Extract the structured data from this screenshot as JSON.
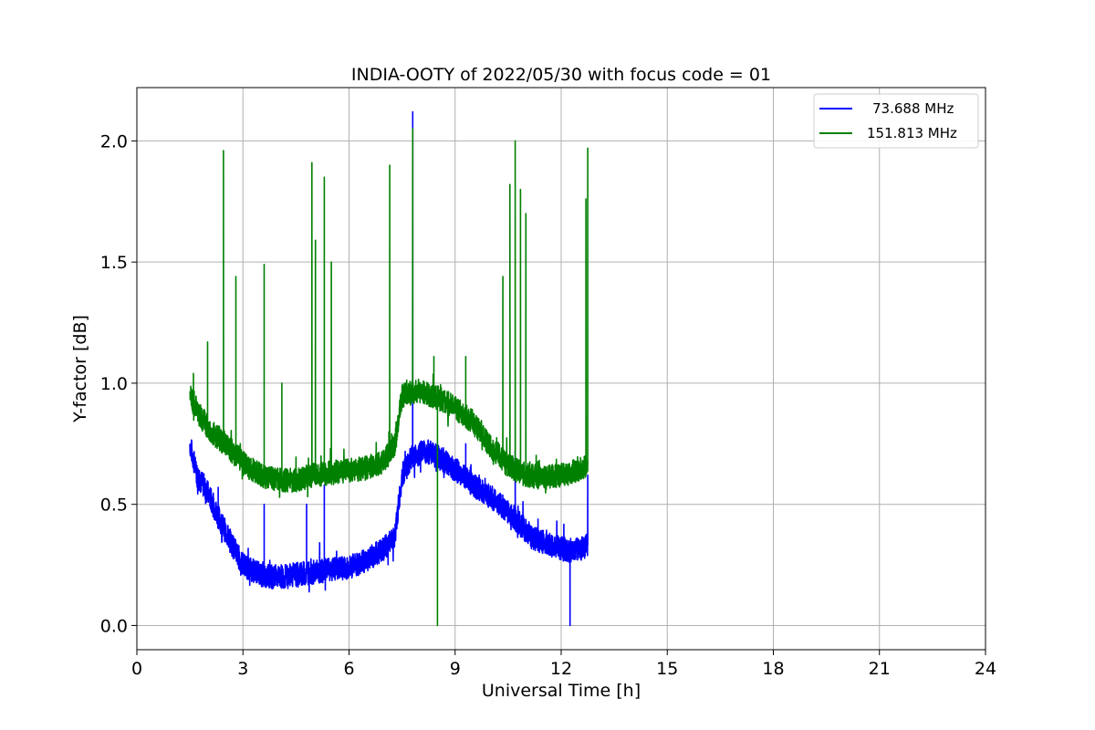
{
  "chart_data": {
    "type": "line",
    "title": "INDIA-OOTY of 2022/05/30 with focus code = 01",
    "xlabel": "Universal Time [h]",
    "ylabel": "Y-factor [dB]",
    "xlim": [
      0,
      24
    ],
    "ylim": [
      -0.1,
      2.22
    ],
    "x_ticks": [
      0,
      3,
      6,
      9,
      12,
      15,
      18,
      21,
      24
    ],
    "x_tick_labels": [
      "0",
      "3",
      "6",
      "9",
      "12",
      "15",
      "18",
      "21",
      "24"
    ],
    "y_ticks": [
      0.0,
      0.5,
      1.0,
      1.5,
      2.0
    ],
    "y_tick_labels": [
      "0.0",
      "0.5",
      "1.0",
      "1.5",
      "2.0"
    ],
    "grid": true,
    "legend_position": "top-right",
    "series": [
      {
        "name": "73.688 MHz",
        "color": "#0000ff",
        "baseline": [
          [
            1.5,
            0.75
          ],
          [
            1.7,
            0.62
          ],
          [
            2.0,
            0.55
          ],
          [
            2.3,
            0.45
          ],
          [
            2.6,
            0.36
          ],
          [
            3.0,
            0.25
          ],
          [
            3.5,
            0.21
          ],
          [
            4.0,
            0.2
          ],
          [
            4.5,
            0.21
          ],
          [
            5.0,
            0.22
          ],
          [
            5.5,
            0.23
          ],
          [
            6.0,
            0.24
          ],
          [
            6.5,
            0.27
          ],
          [
            7.0,
            0.32
          ],
          [
            7.3,
            0.37
          ],
          [
            7.5,
            0.62
          ],
          [
            7.8,
            0.7
          ],
          [
            8.2,
            0.72
          ],
          [
            8.7,
            0.68
          ],
          [
            9.2,
            0.62
          ],
          [
            9.7,
            0.56
          ],
          [
            10.2,
            0.51
          ],
          [
            10.7,
            0.44
          ],
          [
            11.2,
            0.36
          ],
          [
            11.7,
            0.33
          ],
          [
            12.2,
            0.31
          ],
          [
            12.6,
            0.32
          ],
          [
            12.75,
            0.33
          ]
        ],
        "noise": 0.05,
        "spikes": [
          [
            2.3,
            0.57
          ],
          [
            3.6,
            0.5
          ],
          [
            4.8,
            0.5
          ],
          [
            5.3,
            0.58
          ],
          [
            7.8,
            2.12
          ],
          [
            9.3,
            0.75
          ],
          [
            10.7,
            0.72
          ],
          [
            12.25,
            0.0
          ],
          [
            12.75,
            0.62
          ]
        ]
      },
      {
        "name": "151.813 MHz",
        "color": "#008000",
        "baseline": [
          [
            1.5,
            0.95
          ],
          [
            1.8,
            0.86
          ],
          [
            2.1,
            0.8
          ],
          [
            2.5,
            0.75
          ],
          [
            3.0,
            0.67
          ],
          [
            3.5,
            0.62
          ],
          [
            4.0,
            0.6
          ],
          [
            4.5,
            0.6
          ],
          [
            5.0,
            0.62
          ],
          [
            5.5,
            0.63
          ],
          [
            6.0,
            0.64
          ],
          [
            6.5,
            0.65
          ],
          [
            7.0,
            0.68
          ],
          [
            7.3,
            0.75
          ],
          [
            7.5,
            0.95
          ],
          [
            8.0,
            0.97
          ],
          [
            8.5,
            0.94
          ],
          [
            9.0,
            0.9
          ],
          [
            9.5,
            0.84
          ],
          [
            10.0,
            0.74
          ],
          [
            10.5,
            0.66
          ],
          [
            11.0,
            0.62
          ],
          [
            11.5,
            0.61
          ],
          [
            12.0,
            0.62
          ],
          [
            12.5,
            0.64
          ],
          [
            12.75,
            0.66
          ]
        ],
        "noise": 0.05,
        "spikes": [
          [
            1.6,
            1.04
          ],
          [
            2.0,
            1.17
          ],
          [
            2.45,
            1.96
          ],
          [
            2.8,
            1.44
          ],
          [
            3.6,
            1.49
          ],
          [
            4.1,
            1.0
          ],
          [
            4.95,
            1.91
          ],
          [
            5.05,
            1.59
          ],
          [
            5.3,
            1.85
          ],
          [
            5.5,
            1.5
          ],
          [
            7.15,
            1.9
          ],
          [
            7.8,
            2.05
          ],
          [
            8.5,
            0.0
          ],
          [
            8.4,
            1.11
          ],
          [
            9.3,
            1.11
          ],
          [
            10.35,
            1.44
          ],
          [
            10.55,
            1.82
          ],
          [
            10.7,
            2.0
          ],
          [
            10.85,
            1.8
          ],
          [
            11.0,
            1.7
          ],
          [
            12.7,
            1.76
          ],
          [
            12.75,
            1.97
          ]
        ]
      }
    ]
  }
}
